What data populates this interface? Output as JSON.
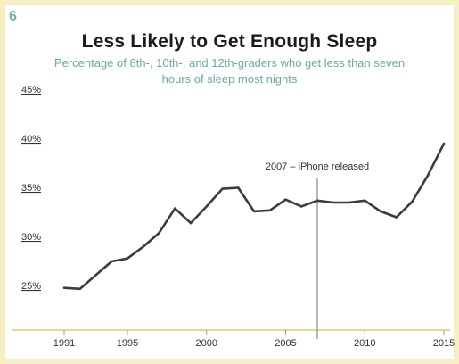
{
  "figure": {
    "number": "6",
    "title": "Less Likely to Get Enough Sleep",
    "subtitle": "Percentage of 8th-, 10th-, and 12th-graders who get less than seven hours of sleep most nights"
  },
  "colors": {
    "frame": "#f7efc2",
    "accent": "#6db3ad",
    "line": "#3c3c3c",
    "baseline": "#e8d98a",
    "marker_line": "#888888"
  },
  "chart_data": {
    "type": "line",
    "title": "Less Likely to Get Enough Sleep",
    "subtitle": "Percentage of 8th-, 10th-, and 12th-graders who get less than seven hours of sleep most nights",
    "xlabel": "",
    "ylabel": "",
    "x": [
      1991,
      1992,
      1993,
      1994,
      1995,
      1996,
      1997,
      1998,
      1999,
      2000,
      2001,
      2002,
      2003,
      2004,
      2005,
      2006,
      2007,
      2008,
      2009,
      2010,
      2011,
      2012,
      2013,
      2014,
      2015
    ],
    "values": [
      25.3,
      25.2,
      26.6,
      28.0,
      28.3,
      29.5,
      30.9,
      33.4,
      31.9,
      33.6,
      35.4,
      35.5,
      33.1,
      33.2,
      34.3,
      33.6,
      34.2,
      34.0,
      34.0,
      34.2,
      33.1,
      32.5,
      34.1,
      36.8,
      40.0
    ],
    "xlim": [
      1991,
      2015
    ],
    "ylim": [
      21,
      46
    ],
    "x_ticks": [
      1991,
      1995,
      2000,
      2005,
      2010,
      2015
    ],
    "x_tick_labels": [
      "1991",
      "1995",
      "2000",
      "2005",
      "2010",
      "2015"
    ],
    "y_ticks": [
      25,
      30,
      35,
      40,
      45
    ],
    "y_tick_labels": [
      "25%",
      "30%",
      "35%",
      "40%",
      "45%"
    ],
    "grid": false,
    "annotations": [
      {
        "x": 2007,
        "text": "2007 – iPhone released"
      }
    ]
  }
}
